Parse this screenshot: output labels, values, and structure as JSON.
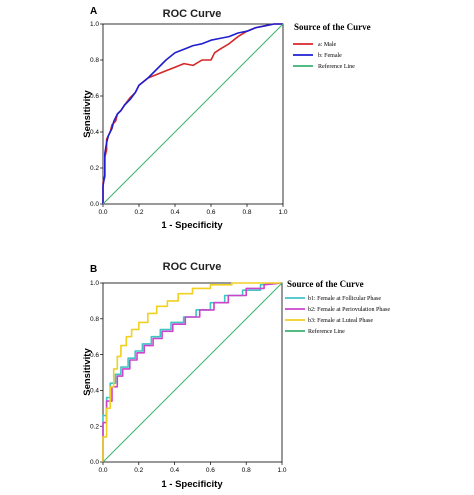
{
  "chart_data": [
    {
      "panel": "A",
      "type": "line",
      "title": "ROC Curve",
      "xlabel": "1 - Specificity",
      "ylabel": "Sensitivity",
      "xlim": [
        0,
        1
      ],
      "ylim": [
        0,
        1
      ],
      "xticks": [
        "0.0",
        "0.2",
        "0.4",
        "0.6",
        "0.8",
        "1.0"
      ],
      "yticks": [
        "0.0",
        "0.2",
        "0.4",
        "0.6",
        "0.8",
        "1.0"
      ],
      "grid": false,
      "legend_title": "Source of the Curve",
      "legend_position": "right",
      "series": [
        {
          "name": "a: Male",
          "color": "#d62728",
          "x": [
            0,
            0,
            0.01,
            0.01,
            0.02,
            0.02,
            0.04,
            0.05,
            0.07,
            0.08,
            0.1,
            0.12,
            0.15,
            0.18,
            0.2,
            0.25,
            0.3,
            0.35,
            0.4,
            0.45,
            0.5,
            0.55,
            0.6,
            0.62,
            0.65,
            0.7,
            0.75,
            0.8,
            0.85,
            0.9,
            0.95,
            1.0
          ],
          "y": [
            0,
            0.12,
            0.15,
            0.26,
            0.3,
            0.36,
            0.4,
            0.44,
            0.46,
            0.5,
            0.52,
            0.55,
            0.59,
            0.62,
            0.66,
            0.7,
            0.72,
            0.74,
            0.76,
            0.78,
            0.77,
            0.8,
            0.8,
            0.84,
            0.86,
            0.89,
            0.93,
            0.96,
            0.98,
            0.99,
            1.0,
            1.0
          ]
        },
        {
          "name": "b: Female",
          "color": "#1f1fcf",
          "x": [
            0,
            0,
            0.01,
            0.01,
            0.02,
            0.03,
            0.05,
            0.06,
            0.08,
            0.1,
            0.12,
            0.15,
            0.18,
            0.2,
            0.25,
            0.3,
            0.35,
            0.4,
            0.45,
            0.5,
            0.55,
            0.6,
            0.65,
            0.7,
            0.75,
            0.8,
            0.85,
            0.9,
            0.95,
            1.0
          ],
          "y": [
            0,
            0.1,
            0.16,
            0.28,
            0.34,
            0.38,
            0.42,
            0.46,
            0.5,
            0.52,
            0.55,
            0.58,
            0.62,
            0.66,
            0.7,
            0.75,
            0.8,
            0.84,
            0.86,
            0.88,
            0.89,
            0.91,
            0.92,
            0.93,
            0.95,
            0.96,
            0.98,
            0.99,
            1.0,
            1.0
          ]
        },
        {
          "name": "Reference Line",
          "color": "#3cb371",
          "x": [
            0,
            1
          ],
          "y": [
            0,
            1
          ]
        }
      ]
    },
    {
      "panel": "B",
      "type": "line",
      "title": "ROC Curve",
      "xlabel": "1 - Specificity",
      "ylabel": "Sensitivity",
      "xlim": [
        0,
        1
      ],
      "ylim": [
        0,
        1
      ],
      "xticks": [
        "0.0",
        "0.2",
        "0.4",
        "0.6",
        "0.8",
        "1.0"
      ],
      "yticks": [
        "0.0",
        "0.2",
        "0.4",
        "0.6",
        "0.8",
        "1.0"
      ],
      "grid": false,
      "legend_title": "Source of the Curve",
      "legend_position": "right",
      "series": [
        {
          "name": "b1: Female at Follicular Phase",
          "color": "#40c4c4",
          "x": [
            0,
            0,
            0.02,
            0.02,
            0.04,
            0.04,
            0.07,
            0.07,
            0.1,
            0.1,
            0.14,
            0.14,
            0.18,
            0.18,
            0.22,
            0.22,
            0.27,
            0.27,
            0.32,
            0.32,
            0.38,
            0.38,
            0.45,
            0.45,
            0.52,
            0.52,
            0.6,
            0.6,
            0.68,
            0.68,
            0.78,
            0.78,
            0.88,
            0.88,
            1.0
          ],
          "y": [
            0,
            0.26,
            0.26,
            0.36,
            0.36,
            0.44,
            0.44,
            0.49,
            0.49,
            0.53,
            0.53,
            0.58,
            0.58,
            0.62,
            0.62,
            0.66,
            0.66,
            0.7,
            0.7,
            0.74,
            0.74,
            0.78,
            0.78,
            0.81,
            0.81,
            0.85,
            0.85,
            0.89,
            0.89,
            0.93,
            0.93,
            0.96,
            0.96,
            0.99,
            1.0
          ]
        },
        {
          "name": "b2: Female at Periovulation Phase",
          "color": "#cc44cc",
          "x": [
            0,
            0,
            0.02,
            0.02,
            0.05,
            0.05,
            0.08,
            0.08,
            0.11,
            0.11,
            0.15,
            0.15,
            0.19,
            0.19,
            0.23,
            0.23,
            0.28,
            0.28,
            0.33,
            0.33,
            0.39,
            0.39,
            0.46,
            0.46,
            0.54,
            0.54,
            0.62,
            0.62,
            0.7,
            0.7,
            0.8,
            0.8,
            0.9,
            0.9,
            1.0
          ],
          "y": [
            0,
            0.22,
            0.22,
            0.34,
            0.34,
            0.42,
            0.42,
            0.48,
            0.48,
            0.52,
            0.52,
            0.57,
            0.57,
            0.61,
            0.61,
            0.65,
            0.65,
            0.69,
            0.69,
            0.73,
            0.73,
            0.77,
            0.77,
            0.81,
            0.81,
            0.85,
            0.85,
            0.89,
            0.89,
            0.93,
            0.93,
            0.97,
            0.97,
            0.99,
            1.0
          ]
        },
        {
          "name": "b3: Female at Luteal Phase",
          "color": "#f0d020",
          "x": [
            0,
            0,
            0.02,
            0.02,
            0.04,
            0.04,
            0.06,
            0.06,
            0.08,
            0.08,
            0.1,
            0.1,
            0.13,
            0.13,
            0.16,
            0.16,
            0.2,
            0.2,
            0.25,
            0.25,
            0.3,
            0.3,
            0.36,
            0.36,
            0.42,
            0.42,
            0.5,
            0.5,
            0.6,
            0.6,
            0.72,
            0.72,
            0.85,
            0.85,
            1.0
          ],
          "y": [
            0,
            0.14,
            0.14,
            0.3,
            0.3,
            0.42,
            0.42,
            0.52,
            0.52,
            0.59,
            0.59,
            0.65,
            0.65,
            0.7,
            0.7,
            0.74,
            0.74,
            0.78,
            0.78,
            0.83,
            0.83,
            0.87,
            0.87,
            0.9,
            0.9,
            0.94,
            0.94,
            0.97,
            0.97,
            0.99,
            0.99,
            1.0,
            1.0,
            1.0,
            1.0
          ]
        },
        {
          "name": "Reference Line",
          "color": "#3cb371",
          "x": [
            0,
            1
          ],
          "y": [
            0,
            1
          ]
        }
      ]
    }
  ]
}
